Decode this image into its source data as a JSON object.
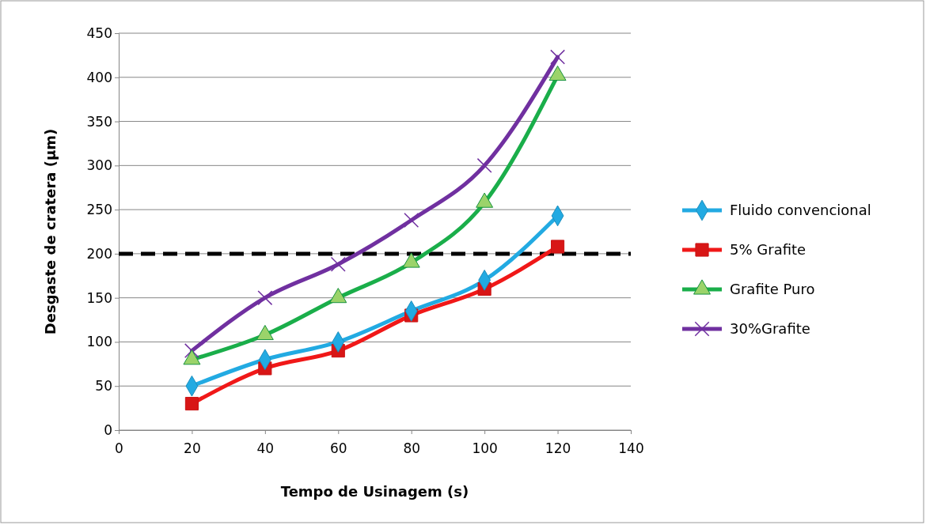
{
  "chart_data": {
    "type": "line",
    "xlabel": "Tempo de Usinagem (s)",
    "ylabel": "Desgaste de cratera (µm)",
    "x": [
      20,
      40,
      60,
      80,
      100,
      120
    ],
    "xlim": [
      0,
      140
    ],
    "xticks": [
      0,
      20,
      40,
      60,
      80,
      100,
      120,
      140
    ],
    "ylim": [
      0,
      450
    ],
    "yticks": [
      0,
      50,
      100,
      150,
      200,
      250,
      300,
      350,
      400,
      450
    ],
    "grid": "y",
    "legend": "right",
    "series": [
      {
        "name": "Fluido convencional",
        "color": "#22aae2",
        "marker": "diamond",
        "values": [
          50,
          80,
          100,
          135,
          170,
          243
        ]
      },
      {
        "name": "5% Grafite",
        "color": "#f01818",
        "marker": "square",
        "values": [
          30,
          70,
          90,
          130,
          160,
          208
        ]
      },
      {
        "name": "Grafite Puro",
        "color": "#1aae4a",
        "marker": "triangle",
        "values": [
          80,
          108,
          150,
          190,
          258,
          402
        ]
      },
      {
        "name": "30%Grafite",
        "color": "#7030a0",
        "marker": "cross",
        "values": [
          90,
          150,
          188,
          238,
          300,
          423
        ]
      }
    ],
    "ref_lines": [
      {
        "axis": "y",
        "value": 200,
        "color": "#000000",
        "line_style": "dashed"
      }
    ]
  }
}
